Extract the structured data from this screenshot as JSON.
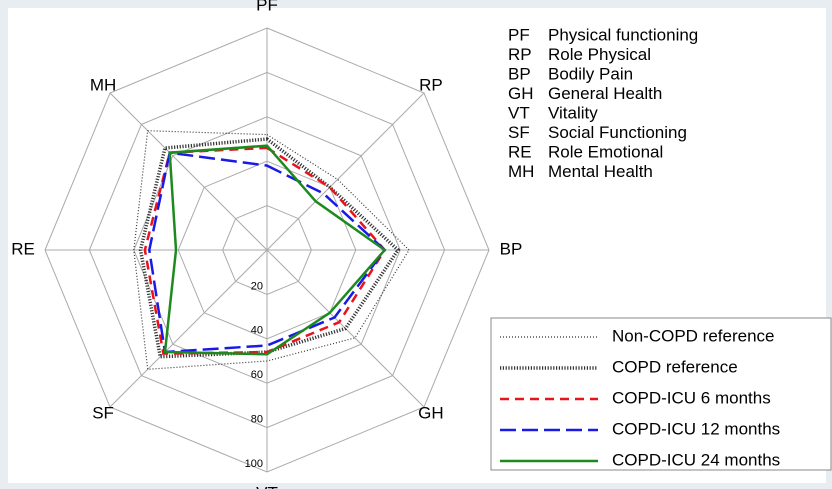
{
  "chart_data": {
    "type": "radar",
    "categories": [
      "PF",
      "RP",
      "BP",
      "GH",
      "VT",
      "SF",
      "RE",
      "MH"
    ],
    "abbreviations": [
      {
        "abbr": "PF",
        "name": "Physical functioning"
      },
      {
        "abbr": "RP",
        "name": "Role Physical"
      },
      {
        "abbr": "BP",
        "name": "Bodily Pain"
      },
      {
        "abbr": "GH",
        "name": "General Health"
      },
      {
        "abbr": "VT",
        "name": "Vitality"
      },
      {
        "abbr": "SF",
        "name": "Social Functioning"
      },
      {
        "abbr": "RE",
        "name": "Role Emotional"
      },
      {
        "abbr": "MH",
        "name": "Mental Health"
      }
    ],
    "rlim": [
      0,
      100
    ],
    "rticks": [
      20,
      40,
      60,
      80,
      100
    ],
    "series": [
      {
        "name": "Non-COPD reference",
        "color": "#333333",
        "line_style": "fine-dotted",
        "values": [
          52,
          45,
          64,
          56,
          50,
          76,
          60,
          76
        ]
      },
      {
        "name": "COPD reference",
        "color": "#333333",
        "line_style": "thick-dotted",
        "values": [
          50,
          40,
          59,
          50,
          46,
          68,
          57,
          65
        ]
      },
      {
        "name": "COPD-ICU 6 months",
        "color": "#e8141b",
        "line_style": "dashed",
        "values": [
          46,
          40,
          53,
          46,
          46,
          66,
          55,
          62
        ]
      },
      {
        "name": "COPD-ICU 12 months",
        "color": "#1a1ae6",
        "line_style": "long-dashed",
        "values": [
          38,
          36,
          53,
          43,
          43,
          65,
          53,
          62
        ]
      },
      {
        "name": "COPD-ICU 24 months",
        "color": "#1e8a1e",
        "line_style": "solid",
        "values": [
          47,
          31,
          53,
          40,
          47,
          65,
          41,
          62
        ]
      }
    ]
  }
}
